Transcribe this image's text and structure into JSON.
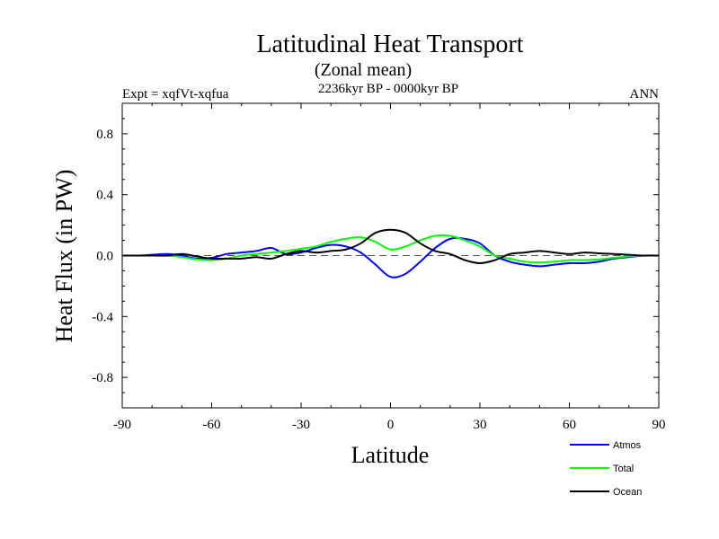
{
  "chart_data": {
    "type": "line",
    "title": "Latitudinal Heat Transport",
    "subtitle": "(Zonal mean)",
    "left_label": "Expt = xqfVt-xqfua",
    "center_label": "2236kyr BP - 0000kyr BP",
    "right_label": "ANN",
    "xlabel": "Latitude",
    "ylabel": "Heat Flux (in PW)",
    "xlim": [
      -90,
      90
    ],
    "ylim": [
      -1.0,
      1.0
    ],
    "xticks": [
      -90,
      -60,
      -30,
      0,
      30,
      60,
      90
    ],
    "xtick_labels": [
      "-90",
      "-60",
      "-30",
      "0",
      "30",
      "60",
      "90"
    ],
    "yticks": [
      0.8,
      0.4,
      0.0,
      -0.4,
      -0.8
    ],
    "ytick_labels": [
      "0.8",
      "0.4",
      "0.0",
      "-0.4",
      "-0.8"
    ],
    "zero_line": true,
    "x": [
      -90,
      -85,
      -80,
      -75,
      -70,
      -65,
      -60,
      -55,
      -50,
      -45,
      -40,
      -35,
      -30,
      -25,
      -20,
      -15,
      -10,
      -5,
      0,
      5,
      10,
      15,
      20,
      25,
      30,
      35,
      40,
      45,
      50,
      55,
      60,
      65,
      70,
      75,
      80,
      85,
      90
    ],
    "series": [
      {
        "name": "Atmos",
        "color": "#0000ff",
        "values": [
          0.0,
          0.0,
          0.005,
          0.01,
          0.0,
          -0.02,
          -0.015,
          0.01,
          0.02,
          0.03,
          0.05,
          0.01,
          0.02,
          0.05,
          0.07,
          0.06,
          0.02,
          -0.06,
          -0.14,
          -0.12,
          -0.04,
          0.05,
          0.11,
          0.11,
          0.08,
          0.0,
          -0.04,
          -0.06,
          -0.07,
          -0.06,
          -0.05,
          -0.05,
          -0.04,
          -0.02,
          -0.01,
          0.0,
          0.0
        ]
      },
      {
        "name": "Total",
        "color": "#00ff00",
        "values": [
          0.0,
          0.0,
          0.0,
          0.0,
          -0.01,
          -0.025,
          -0.03,
          -0.02,
          0.0,
          0.01,
          0.02,
          0.03,
          0.045,
          0.06,
          0.09,
          0.11,
          0.12,
          0.09,
          0.04,
          0.06,
          0.1,
          0.13,
          0.13,
          0.1,
          0.06,
          0.0,
          -0.02,
          -0.04,
          -0.045,
          -0.04,
          -0.03,
          -0.03,
          -0.025,
          -0.015,
          -0.005,
          0.0,
          0.0
        ]
      },
      {
        "name": "Ocean",
        "color": "#000000",
        "values": [
          0.0,
          0.0,
          0.0,
          0.0,
          0.01,
          -0.005,
          -0.02,
          -0.02,
          -0.02,
          -0.01,
          -0.02,
          0.01,
          0.03,
          0.02,
          0.03,
          0.04,
          0.08,
          0.15,
          0.17,
          0.15,
          0.08,
          0.03,
          0.01,
          -0.03,
          -0.05,
          -0.03,
          0.01,
          0.02,
          0.03,
          0.02,
          0.01,
          0.02,
          0.015,
          0.01,
          0.005,
          0.0,
          0.0
        ]
      }
    ],
    "legend": [
      "Atmos",
      "Total",
      "Ocean"
    ],
    "legend_position": "bottom-right"
  }
}
